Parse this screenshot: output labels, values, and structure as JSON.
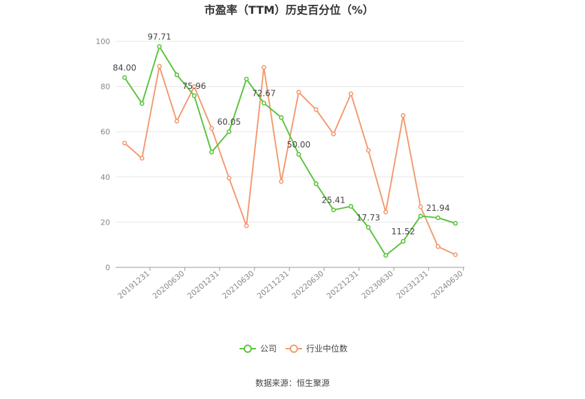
{
  "chart_data": {
    "type": "line",
    "title": "市盈率（TTM）历史百分位（%）",
    "source": "数据来源：恒生聚源",
    "ylim": [
      0,
      100
    ],
    "y_ticks": [
      "0",
      "20",
      "40",
      "60",
      "80",
      "100"
    ],
    "x_tick_labels": [
      "20191231",
      "20200630",
      "20201231",
      "20210630",
      "20211231",
      "20220630",
      "20221231",
      "20230630",
      "20231231",
      "20240630"
    ],
    "grid": true,
    "legend_position": "bottom",
    "series": [
      {
        "name": "公司",
        "color": "#5ac33d",
        "values": [
          84.0,
          72.5,
          97.71,
          85.2,
          75.96,
          51.0,
          60.05,
          83.3,
          72.67,
          66.3,
          50.0,
          37.0,
          25.41,
          27.0,
          17.73,
          5.3,
          11.52,
          22.7,
          21.94,
          19.5
        ],
        "labels": [
          "84.00",
          "",
          "97.71",
          "",
          "75.96",
          "",
          "60.05",
          "",
          "72.67",
          "",
          "50.00",
          "",
          "25.41",
          "",
          "17.73",
          "",
          "11.52",
          "",
          "21.94",
          ""
        ]
      },
      {
        "name": "行业中位数",
        "color": "#f29a6f",
        "values": [
          55.0,
          48.3,
          89.0,
          64.7,
          80.0,
          61.5,
          39.5,
          18.4,
          88.5,
          38.0,
          77.5,
          69.8,
          59.0,
          76.8,
          51.8,
          24.5,
          67.2,
          26.8,
          9.2,
          5.6
        ]
      }
    ]
  }
}
